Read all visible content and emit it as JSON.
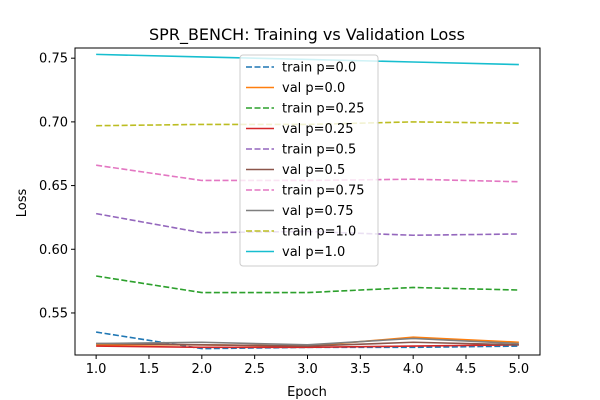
{
  "chart_data": {
    "type": "line",
    "title": "SPR_BENCH: Training vs Validation Loss",
    "xlabel": "Epoch",
    "ylabel": "Loss",
    "xlim": [
      0.8,
      5.2
    ],
    "ylim": [
      0.517,
      0.758
    ],
    "xticks": [
      1.0,
      1.5,
      2.0,
      2.5,
      3.0,
      3.5,
      4.0,
      4.5,
      5.0
    ],
    "yticks": [
      0.55,
      0.6,
      0.65,
      0.7,
      0.75
    ],
    "x": [
      1,
      2,
      3,
      4,
      5
    ],
    "legend_position": "upper-center",
    "series": [
      {
        "name": "train p=0.0",
        "color": "#1f77b4",
        "dash": true,
        "values": [
          0.535,
          0.522,
          0.523,
          0.523,
          0.524
        ]
      },
      {
        "name": "val p=0.0",
        "color": "#ff7f0e",
        "dash": false,
        "values": [
          0.525,
          0.525,
          0.524,
          0.531,
          0.527
        ]
      },
      {
        "name": "train p=0.25",
        "color": "#2ca02c",
        "dash": true,
        "values": [
          0.579,
          0.566,
          0.566,
          0.57,
          0.568
        ]
      },
      {
        "name": "val p=0.25",
        "color": "#d62728",
        "dash": false,
        "values": [
          0.524,
          0.523,
          0.523,
          0.524,
          0.525
        ]
      },
      {
        "name": "train p=0.5",
        "color": "#9467bd",
        "dash": true,
        "values": [
          0.628,
          0.613,
          0.614,
          0.611,
          0.612
        ]
      },
      {
        "name": "val p=0.5",
        "color": "#8c564b",
        "dash": false,
        "values": [
          0.526,
          0.525,
          0.524,
          0.527,
          0.525
        ]
      },
      {
        "name": "train p=0.75",
        "color": "#e377c2",
        "dash": true,
        "values": [
          0.666,
          0.654,
          0.654,
          0.655,
          0.653
        ]
      },
      {
        "name": "val p=0.75",
        "color": "#7f7f7f",
        "dash": false,
        "values": [
          0.526,
          0.527,
          0.525,
          0.53,
          0.526
        ]
      },
      {
        "name": "train p=1.0",
        "color": "#bcbd22",
        "dash": true,
        "values": [
          0.697,
          0.698,
          0.698,
          0.7,
          0.699
        ]
      },
      {
        "name": "val p=1.0",
        "color": "#17becf",
        "dash": false,
        "values": [
          0.753,
          0.751,
          0.749,
          0.747,
          0.745
        ]
      }
    ]
  }
}
